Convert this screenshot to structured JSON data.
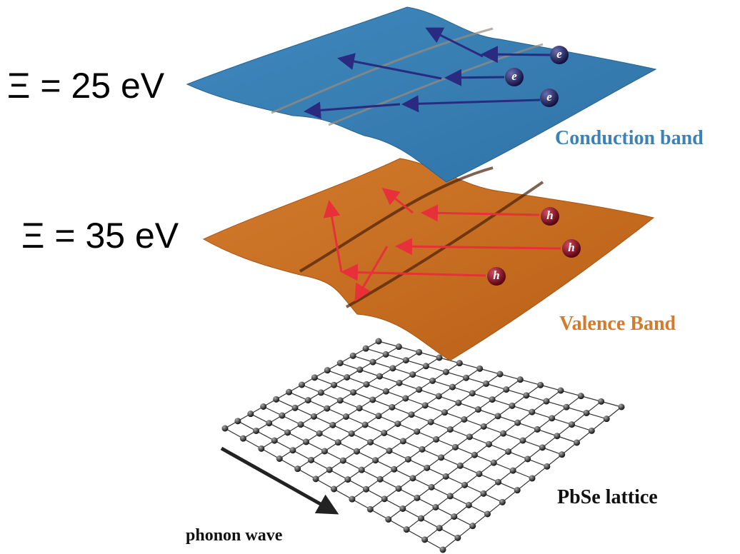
{
  "energies": {
    "conduction": "Ξ = 25 eV",
    "valence": "Ξ = 35 eV"
  },
  "bands": {
    "conduction": "Conduction band",
    "valence": "Valence Band"
  },
  "lattice": {
    "label": "PbSe lattice",
    "wave": "phonon wave"
  },
  "electrons": [
    "e",
    "e",
    "e"
  ],
  "holes": [
    "h",
    "h",
    "h"
  ]
}
